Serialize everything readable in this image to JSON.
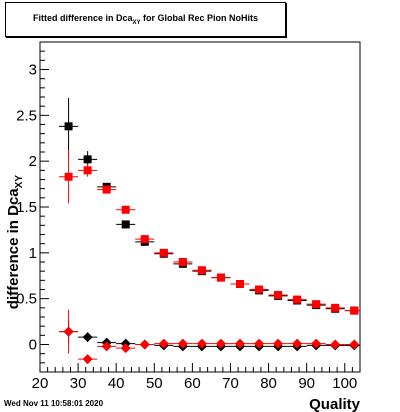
{
  "title": {
    "prefix": "Fitted difference in Dca",
    "subscript": "XY",
    "suffix": " for Global Rec Pion NoHits"
  },
  "timestamp": "Wed Nov 11 10:58:01 2020",
  "colors": {
    "series1": "#000000",
    "series2": "#ff0000",
    "axis": "#000000"
  },
  "chart_data": {
    "type": "scatter",
    "title": "Fitted difference in Dca_XY for Global Rec Pion NoHits",
    "xlabel": "Quality",
    "ylabel": "difference in Dca_XY",
    "xlim": [
      20,
      104
    ],
    "ylim": [
      -0.3,
      3.3
    ],
    "x_ticks": [
      20,
      30,
      40,
      50,
      60,
      70,
      80,
      90,
      100
    ],
    "y_ticks": [
      0,
      0.5,
      1,
      1.5,
      2,
      2.5,
      3
    ],
    "x_tick_labels": [
      "20",
      "30",
      "40",
      "50",
      "60",
      "70",
      "80",
      "90",
      "100"
    ],
    "y_tick_labels": [
      "0",
      "0.5",
      "1",
      "1.5",
      "2",
      "2.5",
      "3"
    ],
    "grid": false,
    "legend": "none",
    "x_error": 2.5,
    "series": [
      {
        "marker": "square",
        "color": "#000000",
        "x": [
          27.5,
          32.5,
          37.5,
          42.5,
          47.5,
          52.5,
          57.5,
          62.5,
          67.5,
          72.5,
          77.5,
          82.5,
          87.5,
          92.5,
          97.5,
          102.5
        ],
        "y": [
          2.38,
          2.02,
          1.72,
          1.31,
          1.12,
          0.99,
          0.88,
          0.8,
          0.73,
          0.66,
          0.59,
          0.53,
          0.48,
          0.43,
          0.39,
          0.37
        ],
        "yerr": [
          0.31,
          0.09,
          0.04,
          0.02,
          0.02,
          0.01,
          0.01,
          0.01,
          0.01,
          0.01,
          0.01,
          0.01,
          0.01,
          0.01,
          0.01,
          0.01
        ]
      },
      {
        "marker": "square",
        "color": "#ff0000",
        "x": [
          27.5,
          32.5,
          37.5,
          42.5,
          47.5,
          52.5,
          57.5,
          62.5,
          67.5,
          72.5,
          77.5,
          82.5,
          87.5,
          92.5,
          97.5,
          102.5
        ],
        "y": [
          1.83,
          1.9,
          1.69,
          1.47,
          1.15,
          1.0,
          0.9,
          0.81,
          0.73,
          0.66,
          0.6,
          0.54,
          0.49,
          0.44,
          0.4,
          0.37
        ],
        "yerr": [
          0.29,
          0.07,
          0.04,
          0.02,
          0.02,
          0.01,
          0.01,
          0.01,
          0.01,
          0.01,
          0.01,
          0.01,
          0.01,
          0.01,
          0.01,
          0.01
        ]
      },
      {
        "marker": "diamond",
        "color": "#000000",
        "x": [
          27.5,
          32.5,
          37.5,
          42.5,
          47.5,
          52.5,
          57.5,
          62.5,
          67.5,
          72.5,
          77.5,
          82.5,
          87.5,
          92.5,
          97.5,
          102.5
        ],
        "y": [
          0.14,
          0.08,
          0.02,
          0.01,
          0.0,
          -0.01,
          -0.02,
          -0.02,
          -0.02,
          -0.02,
          -0.02,
          -0.02,
          -0.02,
          -0.01,
          -0.01,
          -0.01
        ],
        "yerr": [
          0.12,
          0.05,
          0.02,
          0.01,
          0.01,
          0.01,
          0.01,
          0.01,
          0.01,
          0.01,
          0.01,
          0.01,
          0.01,
          0.01,
          0.01,
          0.01
        ]
      },
      {
        "marker": "diamond",
        "color": "#ff0000",
        "x": [
          27.5,
          32.5,
          37.5,
          42.5,
          47.5,
          52.5,
          57.5,
          62.5,
          67.5,
          72.5,
          77.5,
          82.5,
          87.5,
          92.5,
          97.5,
          102.5
        ],
        "y": [
          0.14,
          -0.16,
          -0.02,
          -0.04,
          0.0,
          0.01,
          0.01,
          0.01,
          0.01,
          0.01,
          0.01,
          0.01,
          0.01,
          0.01,
          0.0,
          0.0
        ],
        "yerr": [
          0.24,
          0.05,
          0.02,
          0.01,
          0.01,
          0.01,
          0.01,
          0.01,
          0.01,
          0.01,
          0.01,
          0.01,
          0.01,
          0.01,
          0.01,
          0.01
        ]
      }
    ]
  }
}
